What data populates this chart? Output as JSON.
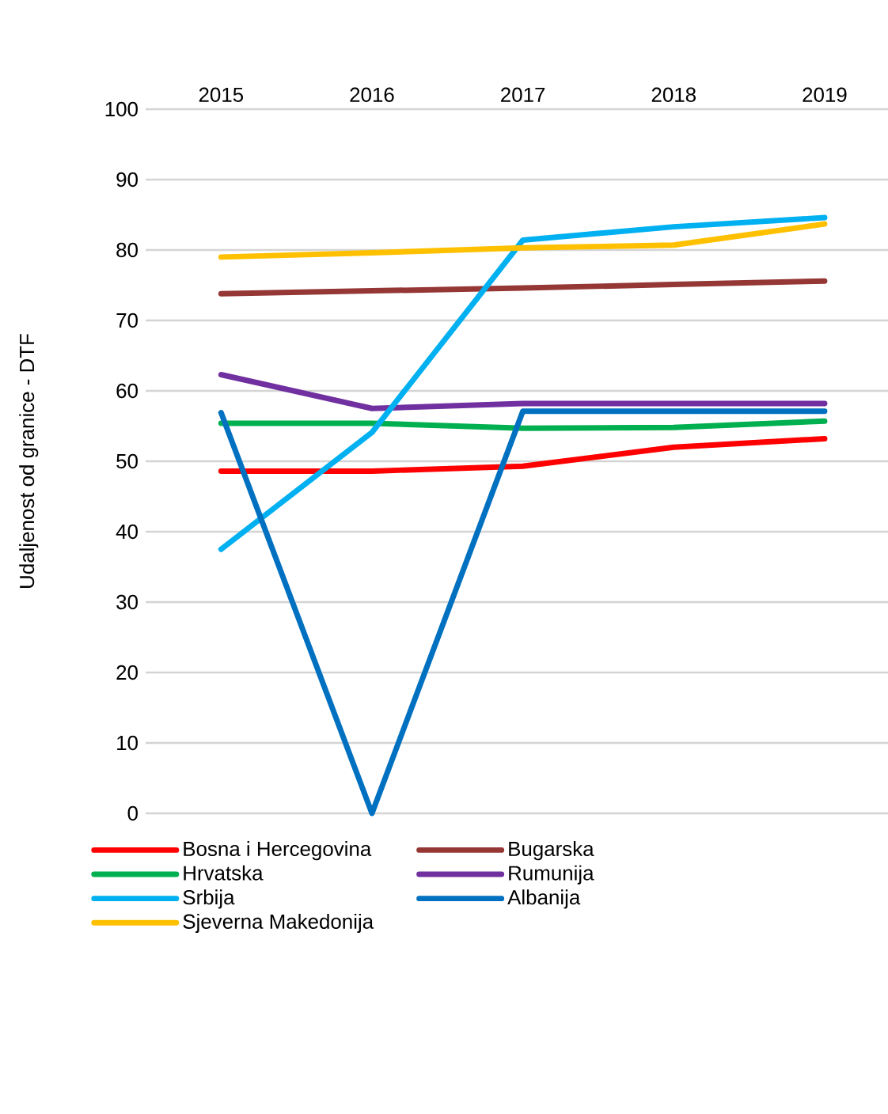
{
  "chart_data": {
    "type": "line",
    "ylabel": "Udaljenost od granice - DTF",
    "categories": [
      "2015",
      "2016",
      "2017",
      "2018",
      "2019"
    ],
    "ylim": [
      0,
      100
    ],
    "yticks": [
      0,
      10,
      20,
      30,
      40,
      50,
      60,
      70,
      80,
      90,
      100
    ],
    "grid": "y",
    "legend": "bottom",
    "line_style": "solid",
    "series": [
      {
        "name": "Bosna i Hercegovina",
        "color": "#ff0000",
        "values": [
          48.6,
          48.6,
          49.3,
          52.0,
          53.2
        ]
      },
      {
        "name": "Bugarska",
        "color": "#953735",
        "values": [
          73.8,
          74.2,
          74.6,
          75.1,
          75.6
        ]
      },
      {
        "name": "Hrvatska",
        "color": "#00b050",
        "values": [
          55.4,
          55.4,
          54.7,
          54.8,
          55.7
        ]
      },
      {
        "name": "Rumunija",
        "color": "#7030a0",
        "values": [
          62.3,
          57.5,
          58.2,
          58.2,
          58.2
        ]
      },
      {
        "name": "Srbija",
        "color": "#00b0f0",
        "values": [
          37.5,
          54.1,
          81.4,
          83.3,
          84.6
        ]
      },
      {
        "name": "Albanija",
        "color": "#0070c0",
        "values": [
          56.9,
          0,
          57.1,
          57.1,
          57.1
        ]
      },
      {
        "name": "Sjeverna Makedonija",
        "color": "#ffc000",
        "values": [
          79.0,
          79.6,
          80.3,
          80.7,
          83.7
        ]
      }
    ]
  }
}
